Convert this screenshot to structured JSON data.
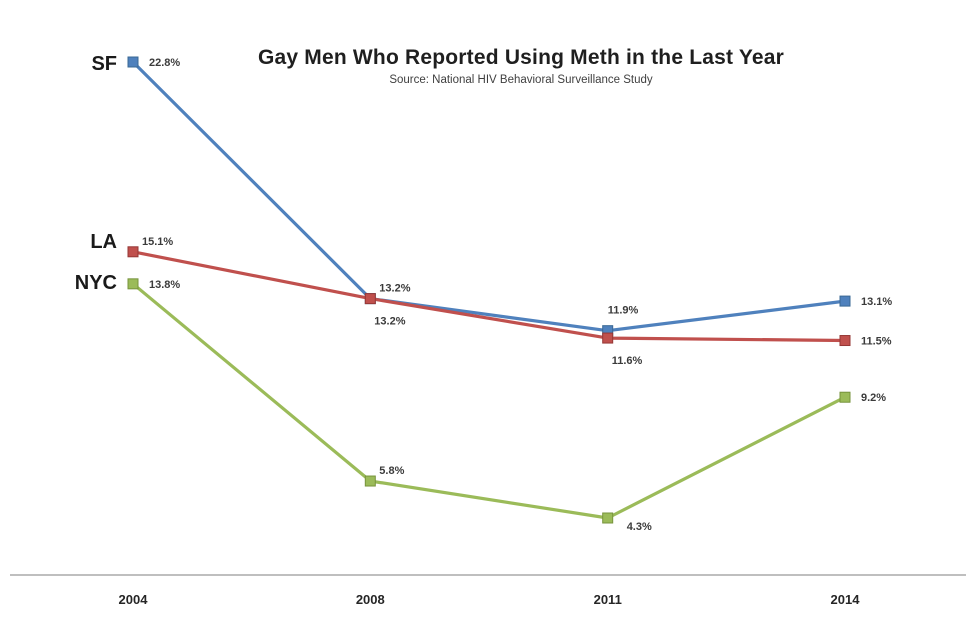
{
  "chart_data": {
    "type": "line",
    "title": "Gay Men Who Reported Using Meth in the Last Year",
    "subtitle": "Source: National HIV Behavioral Surveillance Study",
    "categories": [
      "2004",
      "2008",
      "2011",
      "2014"
    ],
    "series": [
      {
        "name": "SF",
        "color": "#4F81BD",
        "marker_border": "#3A6894",
        "values": [
          22.8,
          13.2,
          11.9,
          13.1
        ],
        "labels": [
          "22.8%",
          "13.2%",
          "11.9%",
          "13.1%"
        ]
      },
      {
        "name": "LA",
        "color": "#C0504D",
        "marker_border": "#953735",
        "values": [
          15.1,
          13.2,
          11.6,
          11.5
        ],
        "labels": [
          "15.1%",
          "13.2%",
          "11.6%",
          "11.5%"
        ]
      },
      {
        "name": "NYC",
        "color": "#9BBB59",
        "marker_border": "#77933C",
        "values": [
          13.8,
          5.8,
          4.3,
          9.2
        ],
        "labels": [
          "13.8%",
          "5.8%",
          "4.3%",
          "9.2%"
        ]
      }
    ],
    "xlabel": "",
    "ylabel": "",
    "ylim": [
      2,
      23.5
    ],
    "grid": false,
    "legend_position": "series names left of first data points",
    "axis_line_color": "#BFBFBF",
    "background": "#FFFFFF",
    "marker_shape": "square"
  }
}
